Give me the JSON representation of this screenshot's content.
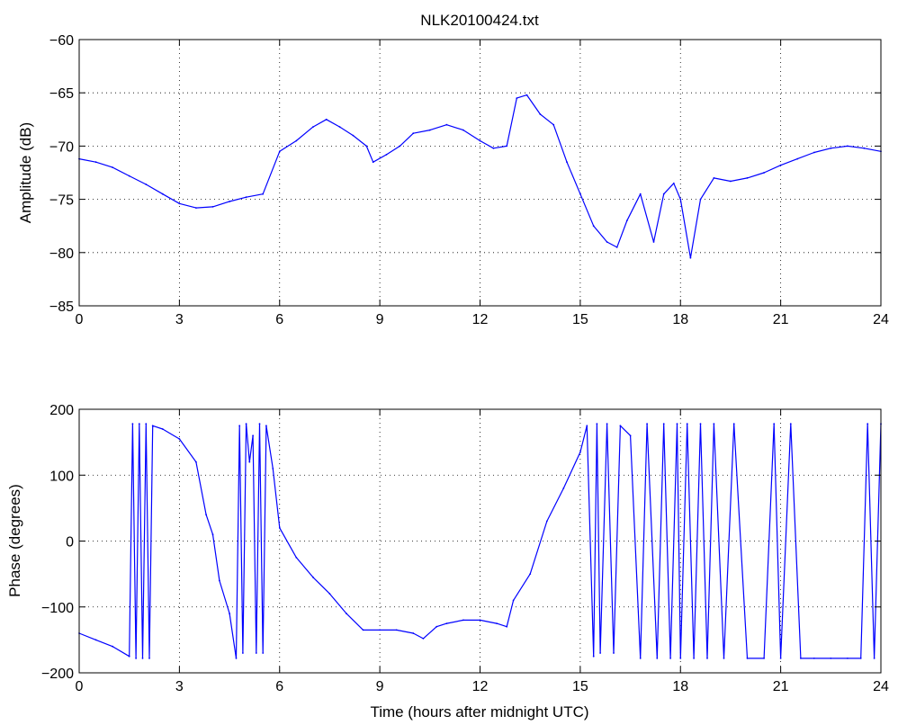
{
  "chart_data": [
    {
      "type": "line",
      "title": "NLK20100424.txt",
      "xlabel": "",
      "ylabel": "Amplitude (dB)",
      "xlim": [
        0,
        24
      ],
      "ylim": [
        -85,
        -60
      ],
      "xticks": [
        0,
        3,
        6,
        9,
        12,
        15,
        18,
        21,
        24
      ],
      "yticks": [
        -85,
        -80,
        -75,
        -70,
        -65,
        -60
      ],
      "grid": true,
      "line_color": "#0000ff",
      "series": [
        {
          "x": [
            0,
            0.5,
            1,
            1.5,
            2,
            2.5,
            3,
            3.5,
            4,
            4.5,
            5,
            5.5,
            6,
            6.5,
            7,
            7.4,
            7.8,
            8.2,
            8.6,
            8.8,
            9.2,
            9.6,
            10,
            10.5,
            11,
            11.5,
            12,
            12.4,
            12.8,
            13.1,
            13.4,
            13.8,
            14.2,
            14.6,
            15,
            15.4,
            15.8,
            16.1,
            16.4,
            16.8,
            17.2,
            17.5,
            17.8,
            18,
            18.3,
            18.6,
            19,
            19.5,
            20,
            20.5,
            21,
            21.5,
            22,
            22.5,
            23,
            23.5,
            24
          ],
          "values": [
            -71.2,
            -71.5,
            -72.0,
            -72.8,
            -73.6,
            -74.5,
            -75.4,
            -75.8,
            -75.7,
            -75.2,
            -74.8,
            -74.5,
            -70.5,
            -69.5,
            -68.2,
            -67.5,
            -68.2,
            -69.0,
            -70.0,
            -71.5,
            -70.8,
            -70.0,
            -68.8,
            -68.5,
            -68.0,
            -68.5,
            -69.5,
            -70.2,
            -70.0,
            -65.5,
            -65.2,
            -67.0,
            -68.0,
            -71.5,
            -74.5,
            -77.5,
            -79.0,
            -79.5,
            -77.0,
            -74.5,
            -79.0,
            -74.5,
            -73.5,
            -75.0,
            -80.5,
            -75.0,
            -73.0,
            -73.3,
            -73.0,
            -72.5,
            -71.8,
            -71.2,
            -70.6,
            -70.2,
            -70.0,
            -70.2,
            -70.5
          ]
        }
      ]
    },
    {
      "type": "line",
      "title": "",
      "xlabel": "Time (hours after midnight UTC)",
      "ylabel": "Phase (degrees)",
      "xlim": [
        0,
        24
      ],
      "ylim": [
        -200,
        200
      ],
      "xticks": [
        0,
        3,
        6,
        9,
        12,
        15,
        18,
        21,
        24
      ],
      "yticks": [
        -200,
        -100,
        0,
        100,
        200
      ],
      "grid": true,
      "line_color": "#0000ff",
      "series": [
        {
          "x": [
            0,
            0.5,
            1,
            1.5,
            1.6,
            1.7,
            1.8,
            1.9,
            2.0,
            2.1,
            2.2,
            2.5,
            3,
            3.5,
            3.8,
            4.0,
            4.2,
            4.5,
            4.7,
            4.8,
            4.9,
            5.0,
            5.1,
            5.2,
            5.3,
            5.4,
            5.5,
            5.6,
            5.8,
            6,
            6.5,
            7,
            7.5,
            8,
            8.5,
            9,
            9.5,
            10,
            10.3,
            10.7,
            11,
            11.5,
            12,
            12.5,
            12.8,
            13,
            13.5,
            14,
            14.5,
            15,
            15.2,
            15.4,
            15.5,
            15.6,
            15.8,
            16,
            16.2,
            16.5,
            16.8,
            17,
            17.3,
            17.5,
            17.7,
            17.9,
            18,
            18.2,
            18.4,
            18.6,
            18.8,
            19,
            19.3,
            19.6,
            20,
            20.5,
            20.8,
            21,
            21.3,
            21.6,
            22,
            22.5,
            23,
            23.4,
            23.6,
            23.8,
            24
          ],
          "values": [
            -140,
            -150,
            -160,
            -175,
            178,
            -178,
            178,
            -178,
            178,
            -178,
            175,
            170,
            155,
            120,
            40,
            10,
            -60,
            -110,
            -178,
            175,
            -170,
            178,
            120,
            160,
            -170,
            178,
            -170,
            175,
            110,
            20,
            -25,
            -55,
            -80,
            -110,
            -135,
            -135,
            -135,
            -140,
            -148,
            -130,
            -125,
            -120,
            -120,
            -125,
            -130,
            -90,
            -50,
            30,
            80,
            135,
            175,
            -175,
            178,
            -170,
            178,
            -170,
            175,
            160,
            -178,
            178,
            -178,
            178,
            -178,
            178,
            -178,
            178,
            -178,
            178,
            -178,
            178,
            -178,
            178,
            -178,
            -178,
            178,
            -178,
            178,
            -178,
            -178,
            -178,
            -178,
            -178,
            178,
            -178,
            178
          ]
        }
      ]
    }
  ]
}
